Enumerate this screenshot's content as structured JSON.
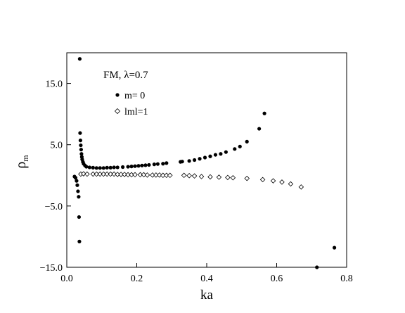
{
  "chart_data": {
    "type": "scatter",
    "title": "",
    "annotation": {
      "text_prefix": "FM, ",
      "lambda_symbol": "λ",
      "text_suffix": "=0.7"
    },
    "xlabel": "ka",
    "ylabel": {
      "symbol": "ρ",
      "subscript": "m"
    },
    "xlim": [
      0.0,
      0.8
    ],
    "ylim": [
      -15.0,
      20.0
    ],
    "x_ticks": [
      {
        "value": 0.0,
        "label": "0.0"
      },
      {
        "value": 0.2,
        "label": "0.2"
      },
      {
        "value": 0.4,
        "label": "0.4"
      },
      {
        "value": 0.6,
        "label": "0.6"
      },
      {
        "value": 0.8,
        "label": "0.8"
      }
    ],
    "y_ticks": [
      {
        "value": -15.0,
        "label": "−15.0"
      },
      {
        "value": -5.0,
        "label": "−5.0"
      },
      {
        "value": 5.0,
        "label": "5.0"
      },
      {
        "value": 15.0,
        "label": "15.0"
      }
    ],
    "grid": false,
    "legend_position": "top-left",
    "series": [
      {
        "name": "m= 0",
        "marker": "filled-circle",
        "color": "#000000",
        "points": [
          [
            0.022,
            -0.2
          ],
          [
            0.025,
            -0.4
          ],
          [
            0.028,
            -0.9
          ],
          [
            0.03,
            -1.6
          ],
          [
            0.032,
            -2.6
          ],
          [
            0.034,
            -3.5
          ],
          [
            0.035,
            -6.8
          ],
          [
            0.036,
            -10.8
          ],
          [
            0.037,
            19.0
          ],
          [
            0.038,
            6.9
          ],
          [
            0.039,
            5.7
          ],
          [
            0.04,
            4.9
          ],
          [
            0.041,
            4.2
          ],
          [
            0.042,
            3.5
          ],
          [
            0.043,
            3.0
          ],
          [
            0.044,
            2.6
          ],
          [
            0.046,
            2.2
          ],
          [
            0.048,
            1.9
          ],
          [
            0.052,
            1.6
          ],
          [
            0.056,
            1.4
          ],
          [
            0.065,
            1.3
          ],
          [
            0.075,
            1.25
          ],
          [
            0.085,
            1.2
          ],
          [
            0.095,
            1.2
          ],
          [
            0.105,
            1.2
          ],
          [
            0.115,
            1.25
          ],
          [
            0.125,
            1.25
          ],
          [
            0.135,
            1.3
          ],
          [
            0.145,
            1.3
          ],
          [
            0.16,
            1.35
          ],
          [
            0.175,
            1.4
          ],
          [
            0.185,
            1.45
          ],
          [
            0.195,
            1.5
          ],
          [
            0.205,
            1.55
          ],
          [
            0.215,
            1.6
          ],
          [
            0.225,
            1.65
          ],
          [
            0.235,
            1.7
          ],
          [
            0.25,
            1.8
          ],
          [
            0.26,
            1.85
          ],
          [
            0.275,
            1.9
          ],
          [
            0.285,
            2.0
          ],
          [
            0.325,
            2.2
          ],
          [
            0.33,
            2.25
          ],
          [
            0.35,
            2.35
          ],
          [
            0.365,
            2.5
          ],
          [
            0.38,
            2.7
          ],
          [
            0.395,
            2.9
          ],
          [
            0.41,
            3.1
          ],
          [
            0.425,
            3.35
          ],
          [
            0.44,
            3.5
          ],
          [
            0.455,
            3.8
          ],
          [
            0.48,
            4.3
          ],
          [
            0.495,
            4.7
          ],
          [
            0.515,
            5.5
          ],
          [
            0.55,
            7.6
          ],
          [
            0.565,
            10.1
          ],
          [
            0.715,
            -15.0
          ],
          [
            0.765,
            -11.8
          ]
        ]
      },
      {
        "name": "|m|=1",
        "legend_label": "lml=1",
        "marker": "open-diamond",
        "color": "#000000",
        "points": [
          [
            0.04,
            0.2
          ],
          [
            0.048,
            0.25
          ],
          [
            0.058,
            0.2
          ],
          [
            0.075,
            0.2
          ],
          [
            0.085,
            0.2
          ],
          [
            0.095,
            0.2
          ],
          [
            0.105,
            0.2
          ],
          [
            0.115,
            0.2
          ],
          [
            0.125,
            0.2
          ],
          [
            0.135,
            0.2
          ],
          [
            0.145,
            0.15
          ],
          [
            0.155,
            0.15
          ],
          [
            0.165,
            0.15
          ],
          [
            0.175,
            0.1
          ],
          [
            0.185,
            0.1
          ],
          [
            0.195,
            0.1
          ],
          [
            0.21,
            0.1
          ],
          [
            0.22,
            0.1
          ],
          [
            0.23,
            0.05
          ],
          [
            0.245,
            0.05
          ],
          [
            0.255,
            0.05
          ],
          [
            0.265,
            0.05
          ],
          [
            0.275,
            0.0
          ],
          [
            0.285,
            0.0
          ],
          [
            0.295,
            0.0
          ],
          [
            0.335,
            0.0
          ],
          [
            0.35,
            -0.05
          ],
          [
            0.365,
            -0.1
          ],
          [
            0.385,
            -0.2
          ],
          [
            0.41,
            -0.25
          ],
          [
            0.435,
            -0.3
          ],
          [
            0.46,
            -0.35
          ],
          [
            0.475,
            -0.4
          ],
          [
            0.515,
            -0.5
          ],
          [
            0.56,
            -0.7
          ],
          [
            0.59,
            -0.9
          ],
          [
            0.615,
            -1.1
          ],
          [
            0.64,
            -1.4
          ],
          [
            0.67,
            -1.9
          ]
        ]
      }
    ]
  }
}
